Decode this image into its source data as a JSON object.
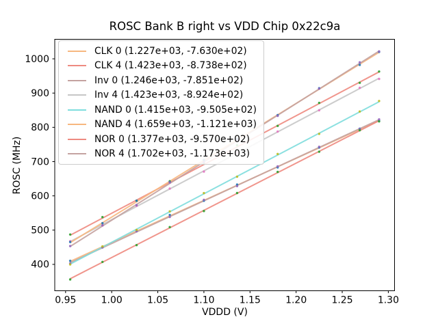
{
  "chart_data": {
    "type": "scatter",
    "title": "ROSC Bank B right vs VDD Chip 0x22c9a",
    "xlabel": "VDDD (V)",
    "ylabel": "ROSC (MHz)",
    "xlim": [
      0.93825,
      1.30675
    ],
    "ylim": [
      323,
      1057
    ],
    "xticks": [
      0.95,
      1.0,
      1.05,
      1.1,
      1.15,
      1.2,
      1.25,
      1.3
    ],
    "yticks": [
      400,
      500,
      600,
      700,
      800,
      900,
      1000
    ],
    "grid": false,
    "legend_position": "upper-left",
    "axis_color": "#000000",
    "x": [
      0.955,
      0.99,
      1.027,
      1.063,
      1.1,
      1.136,
      1.18,
      1.225,
      1.269,
      1.29
    ],
    "series": [
      {
        "name": "CLK 0",
        "label": "CLK 0 (1.227e+03, -7.630e+02)",
        "slope": 1227,
        "intercept": -763.0,
        "line_color": "#f7b77f",
        "marker_color": "#1f77b4",
        "points": [
          410.3,
          449.7,
          498.1,
          544.3,
          585.7,
          632.9,
          682.9,
          741.1,
          796.1,
          818.8
        ]
      },
      {
        "name": "CLK 4",
        "label": "CLK 4 (1.423e+03, -8.738e+02)",
        "slope": 1423,
        "intercept": -873.8,
        "line_color": "#ee8a80",
        "marker_color": "#2ca02c",
        "points": [
          487.2,
          538.0,
          585.6,
          642.8,
          694.5,
          747.7,
          804.3,
          871.4,
          930.0,
          962.9
        ]
      },
      {
        "name": "Inv 0",
        "label": "Inv 0 (1.246e+03, -7.851e+02)",
        "slope": 1246,
        "intercept": -785.1,
        "line_color": "#c4a2a0",
        "marker_color": "#9467bd",
        "points": [
          402.8,
          449.4,
          496.5,
          538.4,
          588.5,
          628.3,
          686.2,
          743.3,
          795.1,
          823.2
        ]
      },
      {
        "name": "Inv 4",
        "label": "Inv 4 (1.423e+03, -8.924e+02)",
        "slope": 1423,
        "intercept": -892.4,
        "line_color": "#c6c6c6",
        "marker_color": "#e377c2",
        "points": [
          467.6,
          513.4,
          571.0,
          621.2,
          670.9,
          727.1,
          787.7,
          849.8,
          915.4,
          941.3
        ]
      },
      {
        "name": "NAND 0",
        "label": "NAND 0 (1.415e+03, -9.505e+02)",
        "slope": 1415,
        "intercept": -950.5,
        "line_color": "#7edddd",
        "marker_color": "#bcbd22",
        "points": [
          399.8,
          452.4,
          500.7,
          554.6,
          608.0,
          655.9,
          722.2,
          780.9,
          846.1,
          876.9
        ]
      },
      {
        "name": "NAND 4",
        "label": "NAND 4 (1.659e+03, -1.121e+03)",
        "slope": 1659,
        "intercept": -1121,
        "line_color": "#f7b77f",
        "marker_color": "#1f77b4",
        "points": [
          465.3,
          520.4,
          585.8,
          640.5,
          704.9,
          765.6,
          835.6,
          914.3,
          982.3,
          1020.1
        ]
      },
      {
        "name": "NOR 0",
        "label": "NOR 0 (1.377e+03, -9.570e+02)",
        "slope": 1377,
        "intercept": -957.0,
        "line_color": "#ee8a80",
        "marker_color": "#2ca02c",
        "points": [
          356.0,
          407.2,
          456.2,
          508.8,
          555.7,
          608.3,
          669.9,
          728.8,
          791.4,
          817.3
        ]
      },
      {
        "name": "NOR 4",
        "label": "NOR 4 (1.702e+03, -1.173e+03)",
        "slope": 1702,
        "intercept": -1173,
        "line_color": "#c4a2a0",
        "marker_color": "#9467bd",
        "points": [
          453.4,
          514.0,
          573.0,
          639.2,
          698.2,
          762.5,
          833.4,
          913.0,
          989.8,
          1021.6
        ]
      }
    ]
  }
}
